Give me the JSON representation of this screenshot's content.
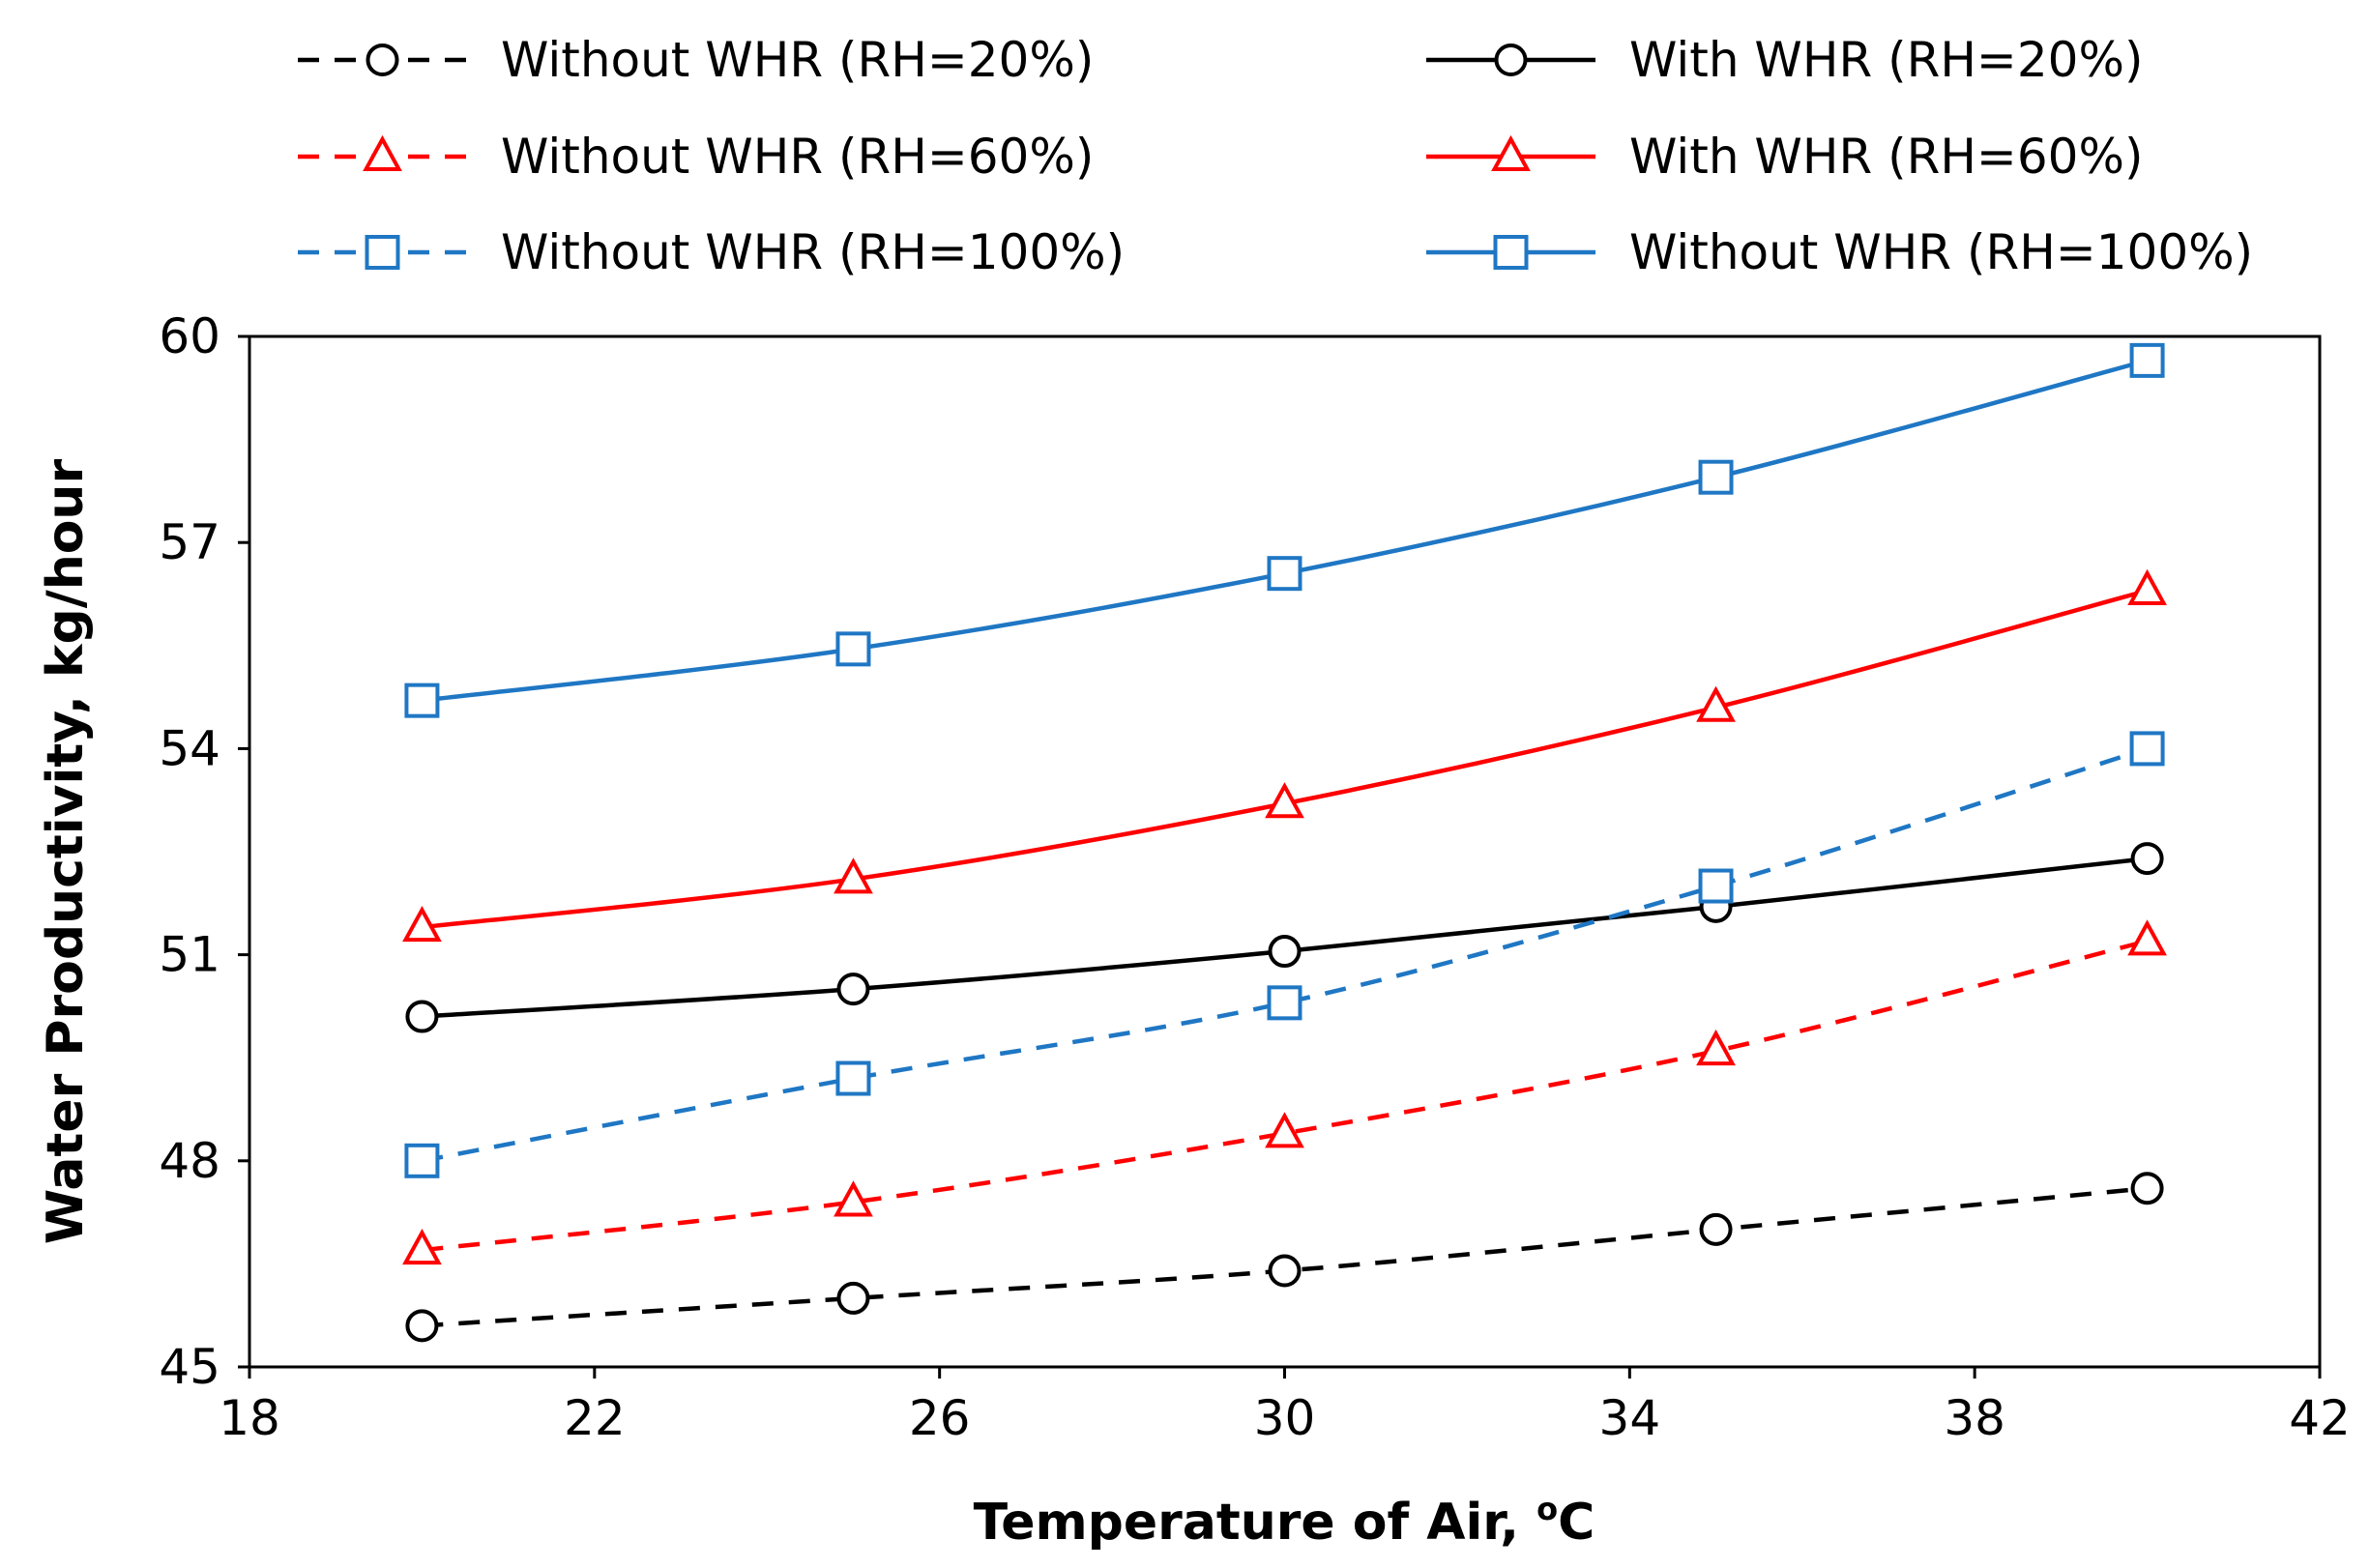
{
  "chart_data": {
    "type": "line",
    "xlabel": "Temperature of Air, ",
    "xlabel_sup": "o",
    "xlabel_suffix": "C",
    "ylabel": "Water Productivity, kg/hour",
    "xlim": [
      18,
      42
    ],
    "ylim": [
      45,
      60
    ],
    "xticks": [
      18,
      22,
      26,
      30,
      34,
      38,
      42
    ],
    "yticks": [
      45,
      48,
      51,
      54,
      57,
      60
    ],
    "x": [
      20,
      25,
      30,
      35,
      40
    ],
    "grid": false,
    "legend_position": "top",
    "series": [
      {
        "name": "Without WHR (RH=20%)",
        "values": [
          45.6,
          46.0,
          46.4,
          47.0,
          47.6
        ],
        "color": "#000000",
        "dashed": true,
        "marker": "circle"
      },
      {
        "name": "With WHR (RH=20%)",
        "values": [
          50.1,
          50.5,
          51.05,
          51.7,
          52.4
        ],
        "color": "#000000",
        "dashed": false,
        "marker": "circle"
      },
      {
        "name": "Without WHR (RH=60%)",
        "values": [
          46.7,
          47.4,
          48.4,
          49.6,
          51.2
        ],
        "color": "#ff0000",
        "dashed": true,
        "marker": "triangle"
      },
      {
        "name": "With WHR (RH=60%)",
        "values": [
          51.4,
          52.1,
          53.2,
          54.6,
          56.3
        ],
        "color": "#ff0000",
        "dashed": false,
        "marker": "triangle"
      },
      {
        "name": "Without WHR (RH=100%)",
        "values": [
          48.0,
          49.2,
          50.3,
          52.0,
          54.0
        ],
        "color": "#1f77c4",
        "dashed": true,
        "marker": "square"
      },
      {
        "name": "Without WHR (RH=100%)",
        "values": [
          54.7,
          55.45,
          56.55,
          57.95,
          59.65
        ],
        "color": "#1f77c4",
        "dashed": false,
        "marker": "square"
      }
    ]
  }
}
